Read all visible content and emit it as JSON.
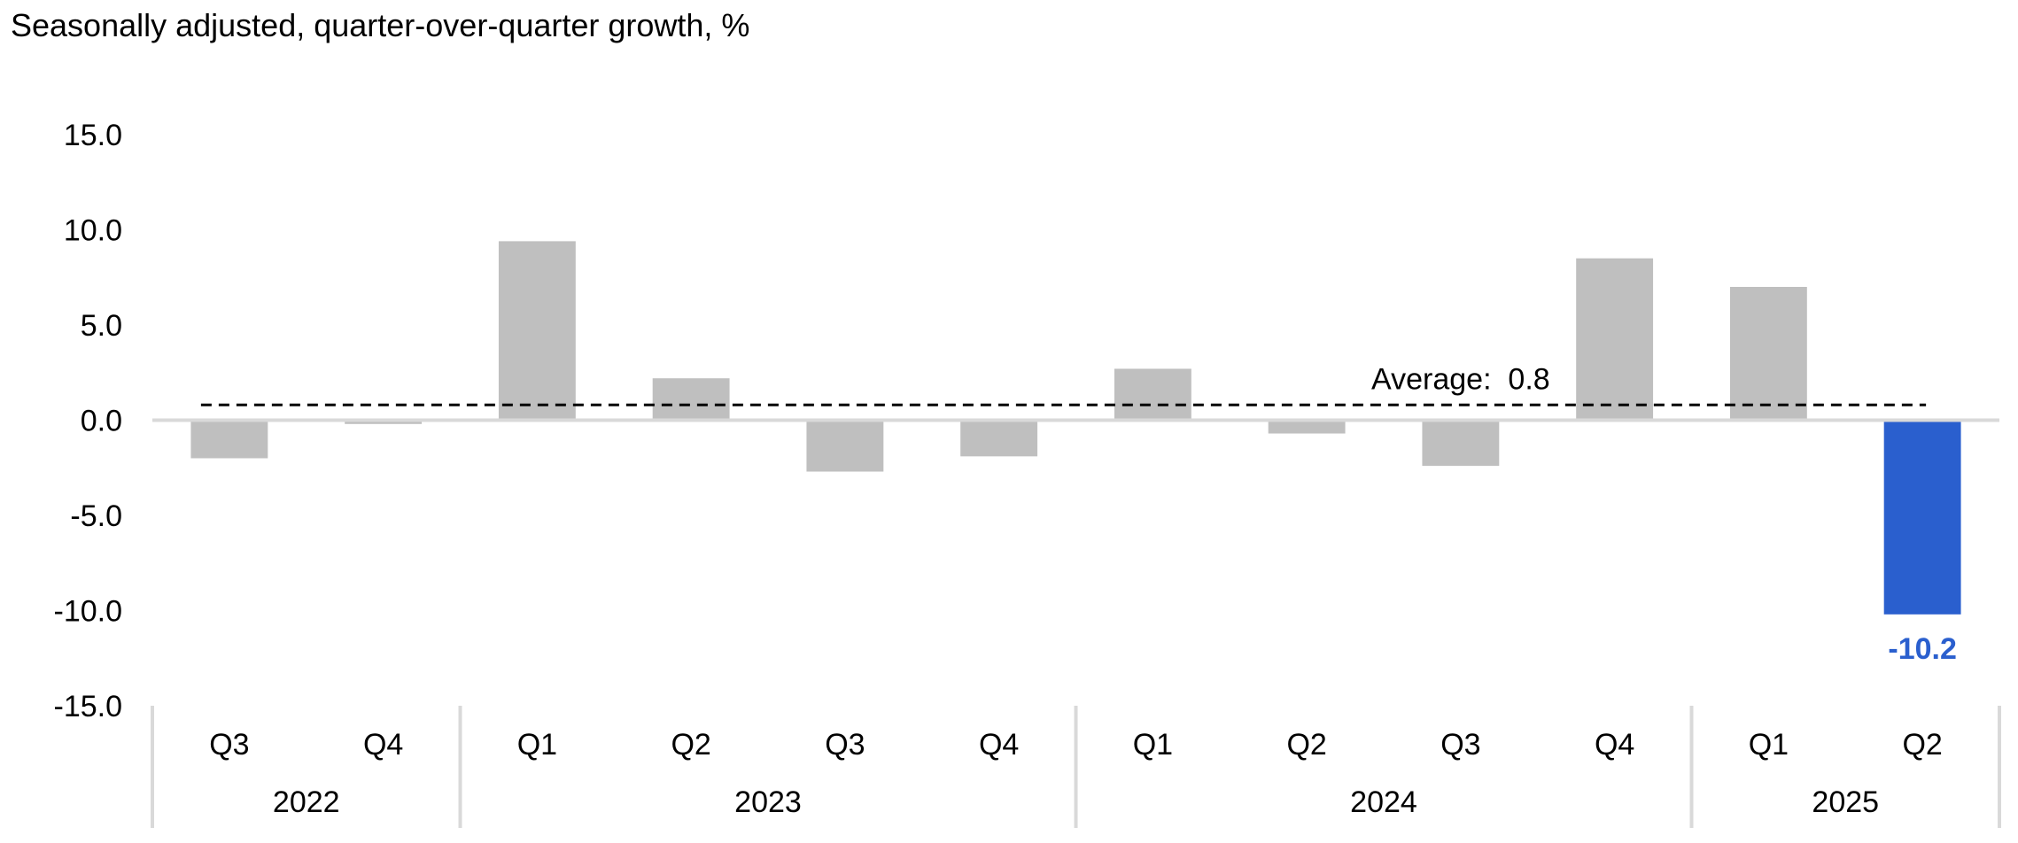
{
  "chart_data": {
    "type": "bar",
    "title": "Seasonally adjusted, quarter-over-quarter growth, %",
    "xlabel": "",
    "ylabel": "",
    "ylim": [
      -15,
      15
    ],
    "yticks": [
      15,
      10,
      5,
      0,
      -5,
      -10,
      -15
    ],
    "ytick_labels": [
      "15.0",
      "10.0",
      "5.0",
      "0.0",
      "-5.0",
      "-10.0",
      "-15.0"
    ],
    "categories": [
      "Q3",
      "Q4",
      "Q1",
      "Q2",
      "Q3",
      "Q4",
      "Q1",
      "Q2",
      "Q3",
      "Q4",
      "Q1",
      "Q2"
    ],
    "groups": [
      {
        "label": "2022",
        "count": 2
      },
      {
        "label": "2023",
        "count": 4
      },
      {
        "label": "2024",
        "count": 4
      },
      {
        "label": "2025",
        "count": 2
      }
    ],
    "values": [
      -2.0,
      -0.2,
      9.4,
      2.2,
      -2.7,
      -1.9,
      2.7,
      -0.7,
      -2.4,
      8.5,
      7.0,
      -10.2
    ],
    "highlight_index": 11,
    "highlight_label": "-10.2",
    "average": {
      "value": 0.8,
      "label": "Average:  0.8"
    },
    "grid": false,
    "legend": "none",
    "colors": {
      "bar": "#bfbfbf",
      "highlight": "#2a5fce",
      "average_line": "#000000",
      "zero_line": "#d9d9d9",
      "separator": "#d9d9d9"
    }
  }
}
